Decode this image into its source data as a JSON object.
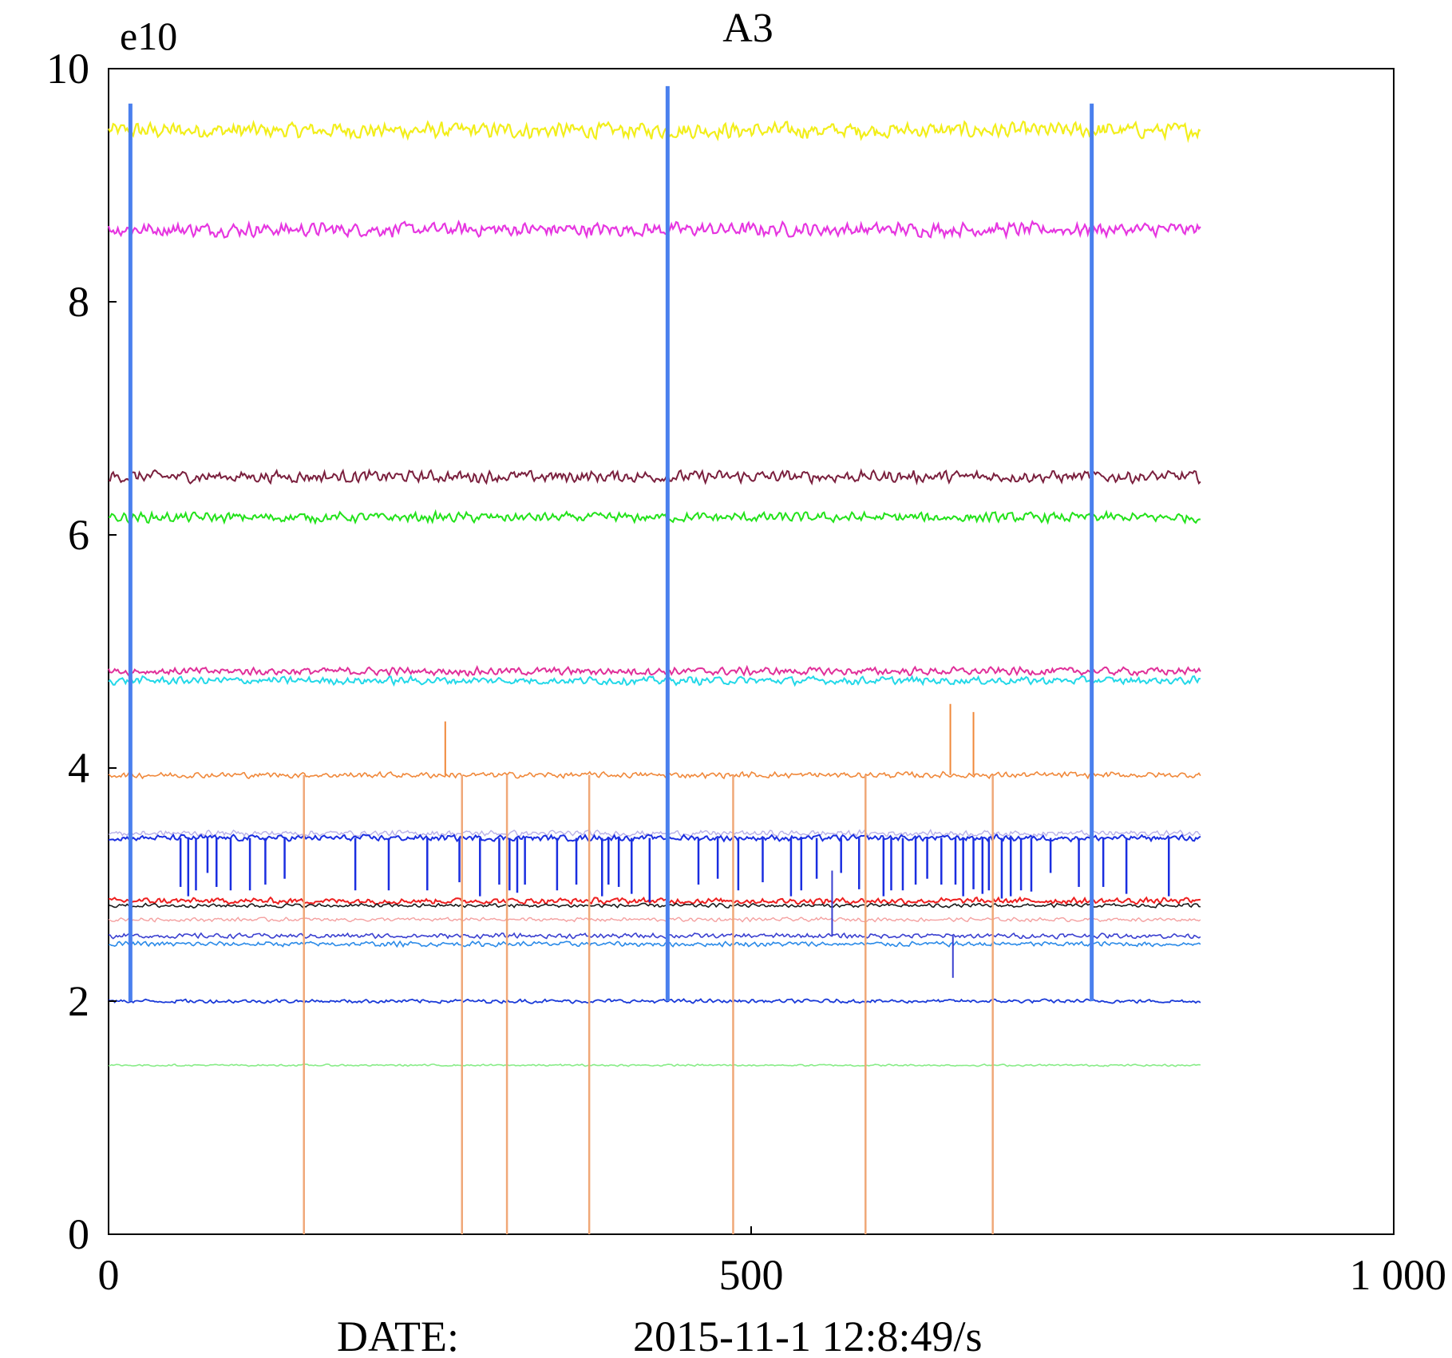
{
  "chart_data": {
    "type": "line",
    "title": "A3",
    "y_unit_label": "e10",
    "xlabel_prefix": "DATE:",
    "xlabel_date": "2015-11-1 12:8:49/s",
    "xlim": [
      0,
      1000
    ],
    "ylim": [
      0,
      10
    ],
    "x_ticks": [
      {
        "v": 0,
        "label": "0"
      },
      {
        "v": 500,
        "label": "500"
      },
      {
        "v": 1000,
        "label": "1 000"
      }
    ],
    "y_ticks": [
      {
        "v": 0,
        "label": "0"
      },
      {
        "v": 2,
        "label": "2"
      },
      {
        "v": 4,
        "label": "4"
      },
      {
        "v": 6,
        "label": "6"
      },
      {
        "v": 8,
        "label": "8"
      },
      {
        "v": 10,
        "label": "10"
      }
    ],
    "x_end": 850,
    "series": [
      {
        "name": "yellow",
        "color": "#f2ee1a",
        "level": 9.47,
        "noise": 0.08,
        "width": 2.2
      },
      {
        "name": "magenta",
        "color": "#e636e0",
        "level": 8.62,
        "noise": 0.07,
        "width": 2.2
      },
      {
        "name": "dark-red",
        "color": "#7a1f3d",
        "level": 6.5,
        "noise": 0.06,
        "width": 2
      },
      {
        "name": "green",
        "color": "#22e21a",
        "level": 6.15,
        "noise": 0.05,
        "width": 2
      },
      {
        "name": "pink",
        "color": "#e0309a",
        "level": 4.83,
        "noise": 0.04,
        "width": 2
      },
      {
        "name": "cyan",
        "color": "#22d8e8",
        "level": 4.75,
        "noise": 0.04,
        "width": 2
      },
      {
        "name": "orange",
        "color": "#f0883a",
        "level": 3.94,
        "noise": 0.03,
        "width": 1.6
      },
      {
        "name": "lavender",
        "color": "#b8b0e8",
        "level": 3.44,
        "noise": 0.03,
        "width": 1.4
      },
      {
        "name": "blue",
        "color": "#1a2ee0",
        "level": 3.4,
        "noise": 0.03,
        "width": 2
      },
      {
        "name": "red",
        "color": "#ee2020",
        "level": 2.86,
        "noise": 0.03,
        "width": 2
      },
      {
        "name": "black",
        "color": "#1a1a1a",
        "level": 2.82,
        "noise": 0.02,
        "width": 1.6
      },
      {
        "name": "salmon",
        "color": "#f4a0a0",
        "level": 2.7,
        "noise": 0.02,
        "width": 1.4
      },
      {
        "name": "navy-blue",
        "color": "#3a40d0",
        "level": 2.56,
        "noise": 0.025,
        "width": 1.6
      },
      {
        "name": "sky-blue",
        "color": "#2a8ae8",
        "level": 2.49,
        "noise": 0.025,
        "width": 1.6
      },
      {
        "name": "blue-2",
        "color": "#1a3ad8",
        "level": 2.0,
        "noise": 0.02,
        "width": 1.8
      },
      {
        "name": "light-green",
        "color": "#88ec88",
        "level": 1.45,
        "noise": 0.01,
        "width": 1.6
      }
    ],
    "spikes": [
      {
        "color": "#4a80ee",
        "width": 5,
        "segments": [
          [
            17,
            2.0,
            9.7
          ],
          [
            435,
            2.0,
            9.85
          ],
          [
            765,
            2.0,
            9.7
          ]
        ]
      },
      {
        "color": "#4a80ee",
        "width": 3,
        "segments": [
          [
            17,
            2.5,
            7.0
          ],
          [
            435,
            2.5,
            6.9
          ],
          [
            765,
            2.5,
            6.6
          ]
        ]
      },
      {
        "color": "#f0a878",
        "width": 2.5,
        "segments": [
          [
            152,
            0,
            3.94
          ],
          [
            275,
            0,
            3.94
          ],
          [
            310,
            0,
            3.94
          ],
          [
            374,
            0,
            3.94
          ],
          [
            486,
            0,
            3.94
          ],
          [
            589,
            0,
            3.94
          ],
          [
            688,
            0,
            3.94
          ]
        ]
      },
      {
        "color": "#f0883a",
        "width": 2,
        "segments": [
          [
            262,
            3.94,
            4.4
          ],
          [
            655,
            3.94,
            4.55
          ],
          [
            673,
            3.94,
            4.48
          ]
        ]
      },
      {
        "color": "#1a2ee0",
        "width": 2.5,
        "segments": [
          [
            56,
            2.98,
            3.4
          ],
          [
            62,
            2.9,
            3.4
          ],
          [
            68,
            2.95,
            3.4
          ],
          [
            77,
            3.1,
            3.4
          ],
          [
            84,
            2.98,
            3.4
          ],
          [
            95,
            2.95,
            3.4
          ],
          [
            110,
            2.95,
            3.4
          ],
          [
            122,
            3.0,
            3.4
          ],
          [
            137,
            3.05,
            3.4
          ],
          [
            192,
            2.95,
            3.4
          ],
          [
            218,
            2.95,
            3.4
          ],
          [
            248,
            2.95,
            3.4
          ],
          [
            273,
            3.02,
            3.4
          ],
          [
            289,
            2.9,
            3.4
          ],
          [
            304,
            3.0,
            3.4
          ],
          [
            312,
            2.95,
            3.4
          ],
          [
            318,
            2.93,
            3.4
          ],
          [
            324,
            3.0,
            3.4
          ],
          [
            349,
            2.95,
            3.4
          ],
          [
            364,
            3.0,
            3.4
          ],
          [
            384,
            2.9,
            3.4
          ],
          [
            389,
            3.0,
            3.4
          ],
          [
            397,
            2.98,
            3.4
          ],
          [
            407,
            2.92,
            3.4
          ],
          [
            421,
            2.85,
            3.4
          ],
          [
            459,
            3.0,
            3.4
          ],
          [
            474,
            3.05,
            3.4
          ],
          [
            490,
            2.95,
            3.4
          ],
          [
            509,
            3.02,
            3.4
          ],
          [
            531,
            2.9,
            3.4
          ],
          [
            539,
            2.95,
            3.4
          ],
          [
            551,
            3.05,
            3.4
          ],
          [
            570,
            3.1,
            3.4
          ],
          [
            584,
            2.96,
            3.4
          ],
          [
            603,
            2.9,
            3.4
          ],
          [
            609,
            2.95,
            3.4
          ],
          [
            618,
            2.95,
            3.4
          ],
          [
            628,
            3.0,
            3.4
          ],
          [
            637,
            3.05,
            3.4
          ],
          [
            648,
            3.0,
            3.4
          ],
          [
            659,
            3.0,
            3.4
          ],
          [
            665,
            2.9,
            3.4
          ],
          [
            673,
            2.96,
            3.4
          ],
          [
            680,
            2.92,
            3.4
          ],
          [
            685,
            2.95,
            3.4
          ],
          [
            695,
            2.88,
            3.4
          ],
          [
            702,
            2.9,
            3.4
          ],
          [
            710,
            2.95,
            3.4
          ],
          [
            718,
            2.94,
            3.4
          ],
          [
            733,
            3.1,
            3.4
          ],
          [
            755,
            2.98,
            3.4
          ],
          [
            774,
            2.98,
            3.4
          ],
          [
            792,
            2.92,
            3.4
          ],
          [
            825,
            2.9,
            3.4
          ]
        ]
      },
      {
        "color": "#3a40d0",
        "width": 2,
        "segments": [
          [
            563,
            2.56,
            3.12
          ],
          [
            657,
            2.2,
            2.56
          ]
        ]
      }
    ]
  }
}
